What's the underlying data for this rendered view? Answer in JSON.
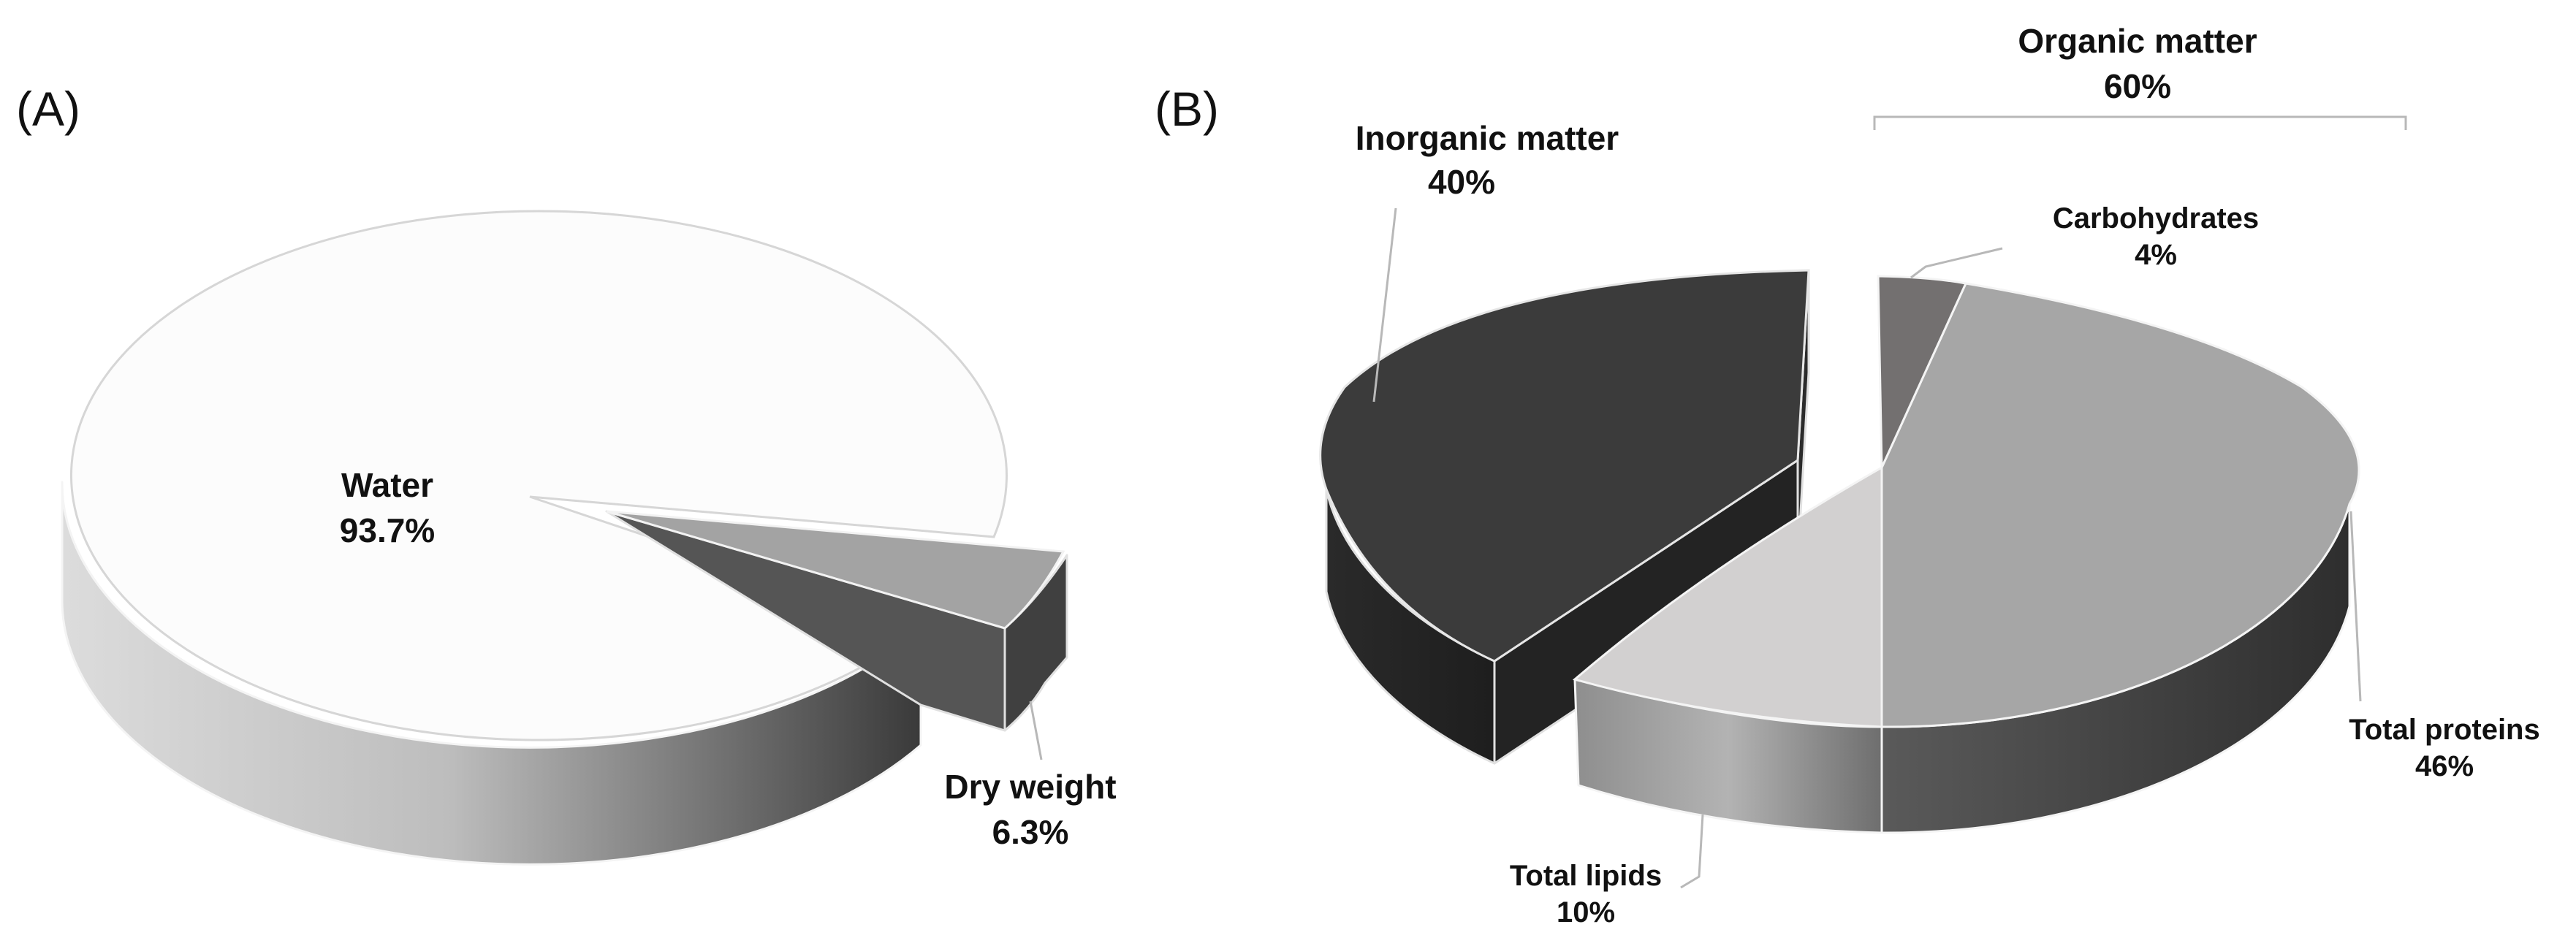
{
  "chart_data": [
    {
      "type": "pie",
      "panel_label": "(A)",
      "slices": [
        {
          "label": "Water",
          "value_text": "93.7%",
          "value": 93.7,
          "color": "#fcfcfc"
        },
        {
          "label": "Dry weight",
          "value_text": "6.3%",
          "value": 6.3,
          "color": "#a3a3a3"
        }
      ]
    },
    {
      "type": "pie",
      "panel_label": "(B)",
      "group_label": {
        "label": "Organic matter",
        "value_text": "60%",
        "value": 60
      },
      "slices": [
        {
          "label": "Inorganic matter",
          "value_text": "40%",
          "value": 40,
          "color": "#3b3b3b"
        },
        {
          "label": "Carbohydrates",
          "value_text": "4%",
          "value": 4,
          "color": "#737070"
        },
        {
          "label": "Total proteins",
          "value_text": "46%",
          "value": 46,
          "color": "#a6a6a6"
        },
        {
          "label": "Total lipids",
          "value_text": "10%",
          "value": 10,
          "color": "#d2d0d0"
        }
      ]
    }
  ]
}
